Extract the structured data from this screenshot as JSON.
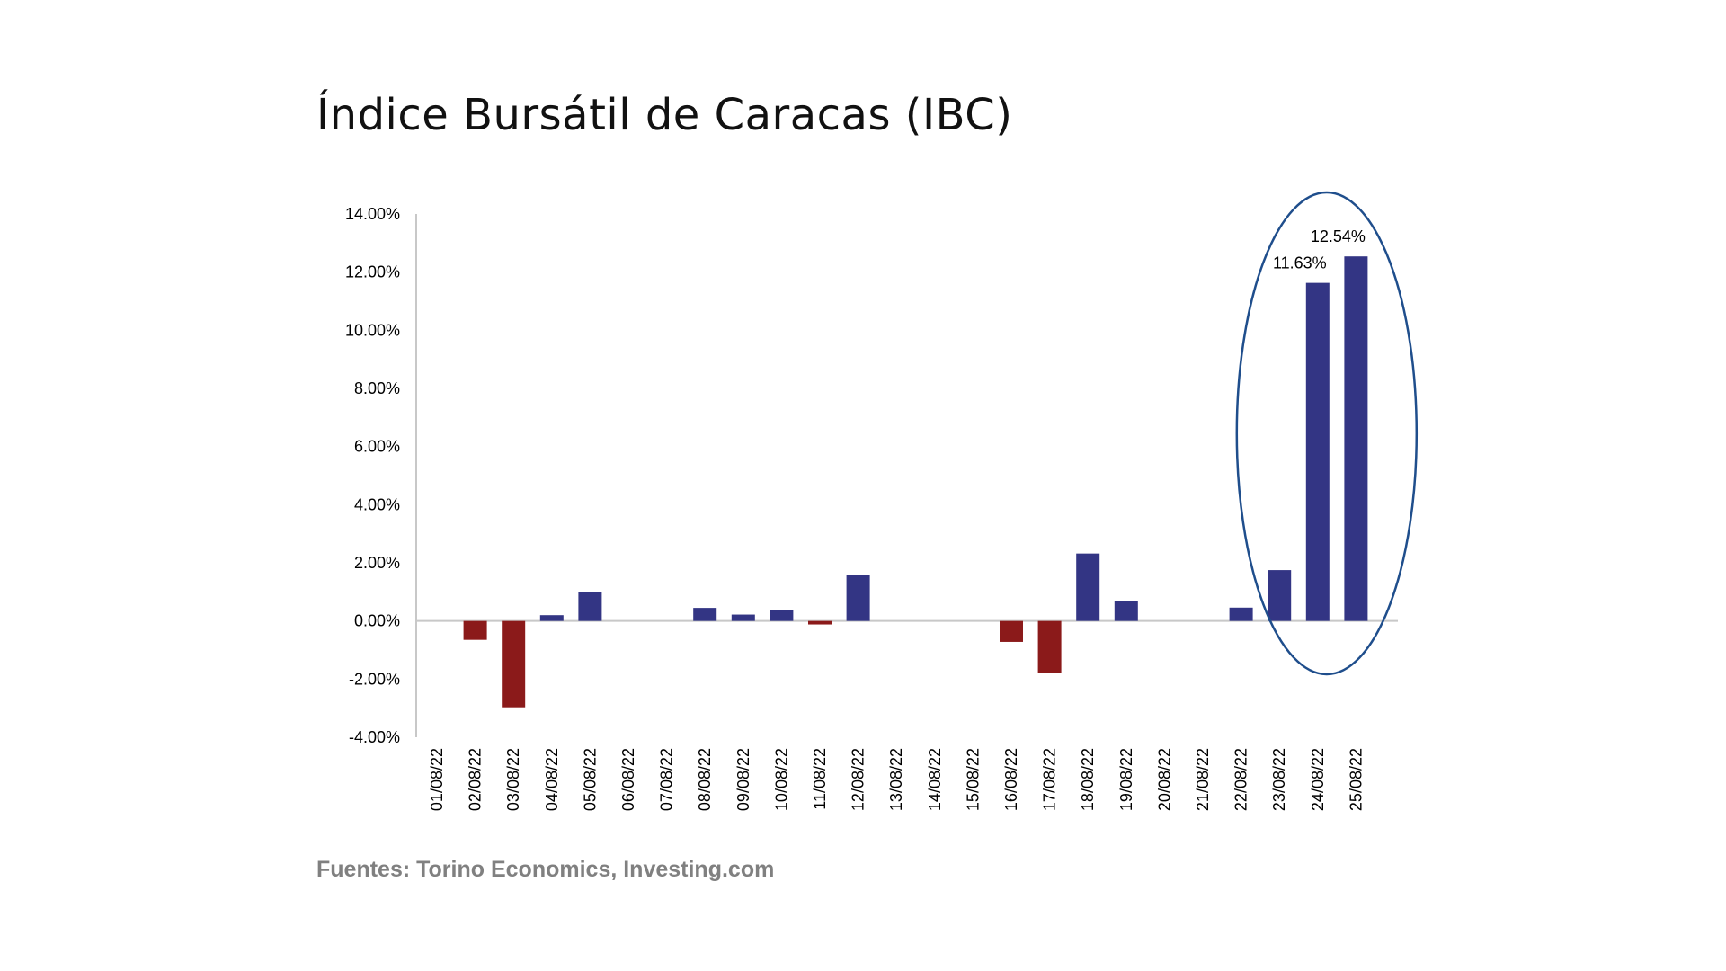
{
  "title": "Índice Bursátil de Caracas (IBC)",
  "source": "Fuentes: Torino Economics, Investing.com",
  "colors": {
    "positive": "#333584",
    "negative": "#8b1a1a",
    "highlight_ellipse": "#1f4e8c",
    "axis": "#c8c8c8"
  },
  "chart_data": {
    "type": "bar",
    "title": "Índice Bursátil de Caracas (IBC)",
    "categories": [
      "01/08/22",
      "02/08/22",
      "03/08/22",
      "04/08/22",
      "05/08/22",
      "06/08/22",
      "07/08/22",
      "08/08/22",
      "09/08/22",
      "10/08/22",
      "11/08/22",
      "12/08/22",
      "13/08/22",
      "14/08/22",
      "15/08/22",
      "16/08/22",
      "17/08/22",
      "18/08/22",
      "19/08/22",
      "20/08/22",
      "21/08/22",
      "22/08/22",
      "23/08/22",
      "24/08/22",
      "25/08/22"
    ],
    "values": [
      0,
      -0.65,
      -2.97,
      0.2,
      1.0,
      0,
      0,
      0.45,
      0.22,
      0.37,
      -0.12,
      1.58,
      0,
      0,
      0,
      -0.72,
      -1.8,
      2.32,
      0.68,
      0,
      0,
      0.46,
      1.75,
      11.63,
      12.54
    ],
    "ylim": [
      -4,
      14
    ],
    "yticks": [
      "-4.00%",
      "-2.00%",
      "0.00%",
      "2.00%",
      "4.00%",
      "6.00%",
      "8.00%",
      "10.00%",
      "12.00%",
      "14.00%"
    ],
    "data_labels": [
      {
        "category": "24/08/22",
        "text": "11.63%"
      },
      {
        "category": "25/08/22",
        "text": "12.54%"
      }
    ],
    "highlight": [
      "23/08/22",
      "24/08/22",
      "25/08/22"
    ],
    "grid": false,
    "legend": "none",
    "xlabel": "",
    "ylabel": ""
  }
}
